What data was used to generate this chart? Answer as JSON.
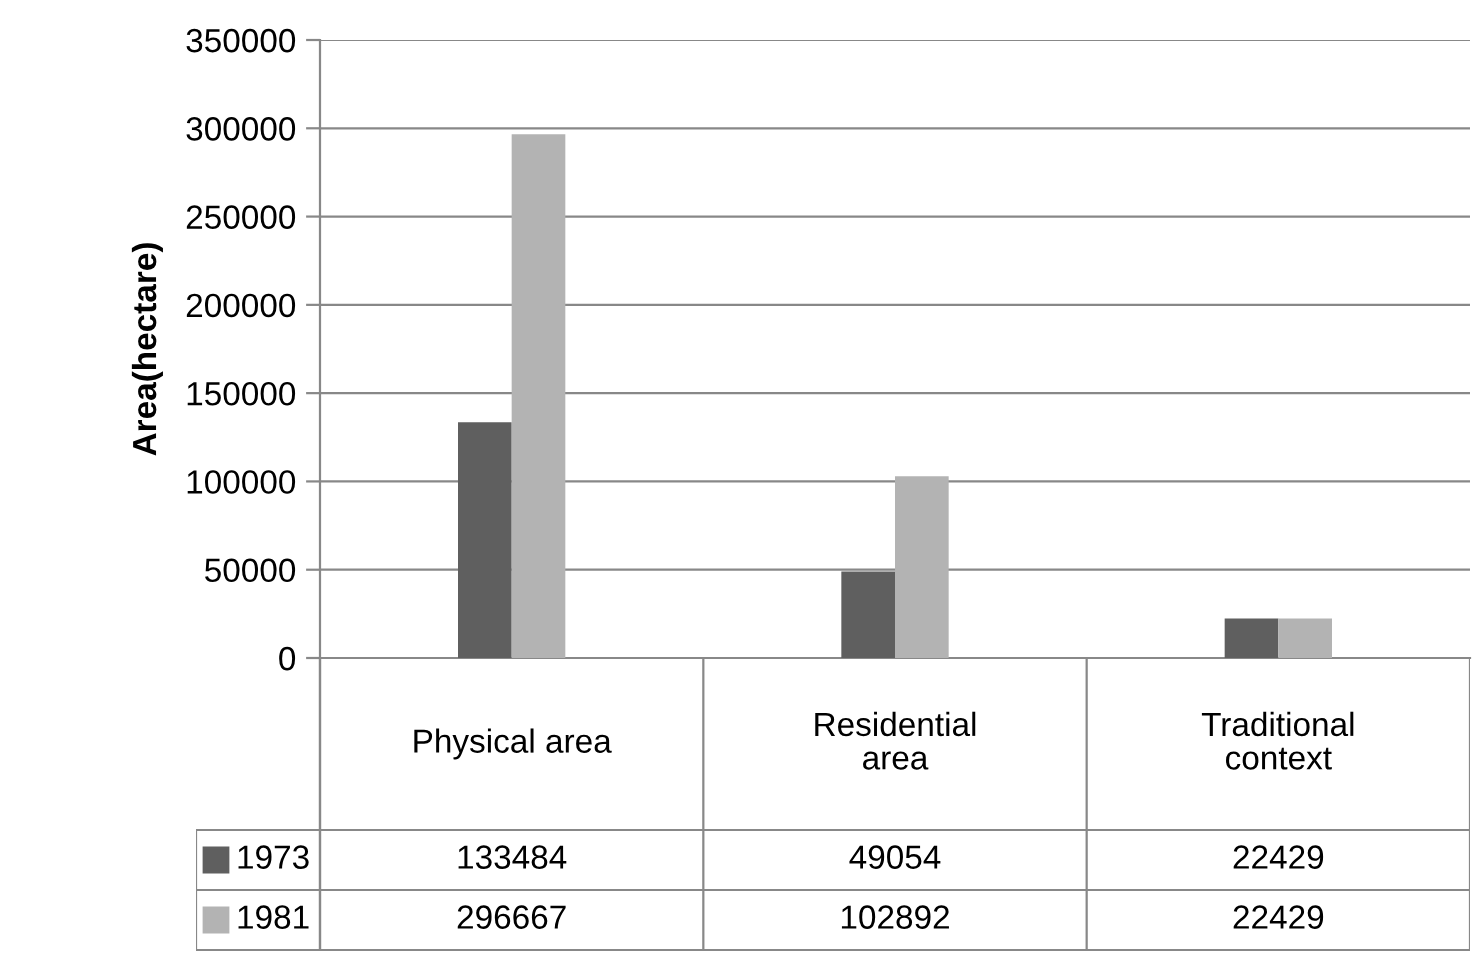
{
  "chart_data": {
    "type": "bar",
    "ylabel": "Area(hectare)",
    "categories": [
      "Physical area",
      "Residential area",
      "Traditional context"
    ],
    "series": [
      {
        "name": "1973",
        "color": "#5f5f5f",
        "values": [
          133484,
          49054,
          22429
        ]
      },
      {
        "name": "1981",
        "color": "#b3b3b3",
        "values": [
          296667,
          102892,
          22429
        ]
      }
    ],
    "ylim": [
      0,
      350000
    ],
    "yticks": [
      0,
      50000,
      100000,
      150000,
      200000,
      250000,
      300000,
      350000
    ],
    "grid": "y",
    "legend": "bottom",
    "data_labels": true
  }
}
